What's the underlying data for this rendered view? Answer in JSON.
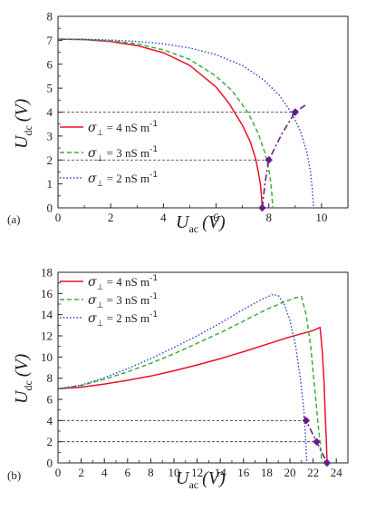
{
  "chart_data": [
    {
      "panel_label": "(a)",
      "type": "line",
      "xlabel": {
        "symbol": "U",
        "sub": "ac",
        "unit": "(V)"
      },
      "ylabel": {
        "symbol": "U",
        "sub": "dc",
        "unit": "(V)"
      },
      "xlim": [
        0,
        11
      ],
      "ylim": [
        0,
        8
      ],
      "xticks": [
        0,
        2,
        4,
        6,
        8,
        10
      ],
      "yticks": [
        0,
        1,
        2,
        3,
        4,
        5,
        6,
        7,
        8
      ],
      "legend_position": "middle-left",
      "series": [
        {
          "name": "σ⊥ = 4 nS m⁻¹",
          "legend": {
            "sym": "σ",
            "sub": "⊥",
            "text": " = 4 nS m",
            "sup": "-1"
          },
          "color": "#e8102a",
          "style": "solid",
          "x": [
            0,
            1,
            2,
            3,
            4,
            5,
            6,
            6.5,
            7,
            7.3,
            7.5,
            7.6,
            7.68,
            7.72,
            7.75
          ],
          "y": [
            7.05,
            7.03,
            6.95,
            6.78,
            6.48,
            5.95,
            5.05,
            4.35,
            3.45,
            2.75,
            2.05,
            1.5,
            1.0,
            0.5,
            0
          ]
        },
        {
          "name": "σ⊥ = 3 nS m⁻¹",
          "legend": {
            "sym": "σ",
            "sub": "⊥",
            "text": " = 3 nS m",
            "sup": "-1"
          },
          "color": "#3fad3f",
          "style": "dashed",
          "x": [
            0,
            1,
            2,
            3,
            4,
            5,
            6,
            6.6,
            7.2,
            7.6,
            7.85,
            8.0,
            8.08,
            8.12,
            8.15
          ],
          "y": [
            7.05,
            7.04,
            6.98,
            6.85,
            6.6,
            6.2,
            5.5,
            4.9,
            4.0,
            3.1,
            2.3,
            1.6,
            1.0,
            0.5,
            0
          ]
        },
        {
          "name": "σ⊥ = 2 nS m⁻¹",
          "legend": {
            "sym": "σ",
            "sub": "⊥",
            "text": " = 2 nS m",
            "sup": "-1"
          },
          "color": "#2640c8",
          "style": "dotted",
          "x": [
            0,
            1,
            2,
            3,
            4,
            5,
            6,
            7,
            7.8,
            8.4,
            8.9,
            9.2,
            9.45,
            9.58,
            9.65,
            9.7
          ],
          "y": [
            7.05,
            7.04,
            7.01,
            6.95,
            6.85,
            6.68,
            6.4,
            5.95,
            5.35,
            4.7,
            3.9,
            3.2,
            2.3,
            1.5,
            0.8,
            0
          ]
        }
      ],
      "guide_lines_y": [
        4,
        2
      ],
      "markers": {
        "color": "#6a1a8a",
        "x": [
          7.75,
          8.0,
          9.0
        ],
        "y": [
          0,
          2,
          4
        ]
      },
      "marker_link": {
        "color": "#6a1a8a",
        "x": [
          7.75,
          7.85,
          8.0,
          8.5,
          9.0,
          9.4
        ],
        "y": [
          0,
          1.0,
          2.0,
          3.1,
          4.0,
          4.3
        ]
      }
    },
    {
      "panel_label": "(b)",
      "type": "line",
      "xlabel": {
        "symbol": "U",
        "sub": "ac",
        "unit": "(V)"
      },
      "ylabel": {
        "symbol": "U",
        "sub": "dc",
        "unit": "(V)"
      },
      "xlim": [
        0,
        25
      ],
      "ylim": [
        0,
        18
      ],
      "xticks": [
        0,
        2,
        4,
        6,
        8,
        10,
        12,
        14,
        16,
        18,
        20,
        22,
        24
      ],
      "yticks": [
        0,
        2,
        4,
        6,
        8,
        10,
        12,
        14,
        16,
        18
      ],
      "legend_position": "top-left",
      "series": [
        {
          "name": "σ⊥ = 4 nS m⁻¹",
          "legend": {
            "sym": "σ",
            "sub": "⊥",
            "text": " = 4 nS m",
            "sup": "-1"
          },
          "color": "#e8102a",
          "style": "solid",
          "x": [
            0,
            2,
            4,
            6,
            8,
            10,
            12,
            14,
            16,
            18,
            20,
            22,
            22.6,
            22.8,
            22.95,
            23.05,
            23.15,
            23.2
          ],
          "y": [
            7.0,
            7.15,
            7.45,
            7.8,
            8.2,
            8.7,
            9.25,
            9.85,
            10.5,
            11.2,
            11.9,
            12.5,
            12.8,
            10.5,
            7.5,
            4.5,
            2.0,
            0
          ]
        },
        {
          "name": "σ⊥ = 3 nS m⁻¹",
          "legend": {
            "sym": "σ",
            "sub": "⊥",
            "text": " = 3 nS m",
            "sup": "-1"
          },
          "color": "#3fad3f",
          "style": "dashed",
          "x": [
            0,
            2,
            4,
            6,
            8,
            10,
            12,
            14,
            16,
            18,
            19.5,
            20.5,
            21.0,
            21.4,
            21.8,
            22.1,
            22.4,
            22.6,
            22.75
          ],
          "y": [
            7.0,
            7.3,
            7.9,
            8.6,
            9.4,
            10.3,
            11.3,
            12.3,
            13.4,
            14.5,
            15.2,
            15.6,
            15.7,
            14.0,
            11.0,
            7.5,
            4.0,
            2.0,
            0
          ]
        },
        {
          "name": "σ⊥ = 2 nS m⁻¹",
          "legend": {
            "sym": "σ",
            "sub": "⊥",
            "text": " = 2 nS m",
            "sup": "-1"
          },
          "color": "#2640c8",
          "style": "dotted",
          "x": [
            0,
            2,
            4,
            6,
            8,
            10,
            12,
            14,
            16,
            17.5,
            18.5,
            19.0,
            19.5,
            20.0,
            20.5,
            20.9,
            21.2,
            21.35,
            21.45
          ],
          "y": [
            7.0,
            7.35,
            8.05,
            8.9,
            9.85,
            10.9,
            12.0,
            13.2,
            14.5,
            15.4,
            15.9,
            15.8,
            15.0,
            13.5,
            11.0,
            8.0,
            5.0,
            2.5,
            0
          ]
        }
      ],
      "guide_lines_y": [
        4,
        2
      ],
      "markers": {
        "color": "#6a1a8a",
        "x": [
          21.4,
          22.3,
          23.2
        ],
        "y": [
          4,
          2,
          0
        ]
      },
      "marker_link": {
        "color": "#6a1a8a",
        "x": [
          21.2,
          21.4,
          22.3,
          23.2,
          23.4
        ],
        "y": [
          4.4,
          4,
          2,
          0,
          -0.3
        ]
      }
    }
  ]
}
